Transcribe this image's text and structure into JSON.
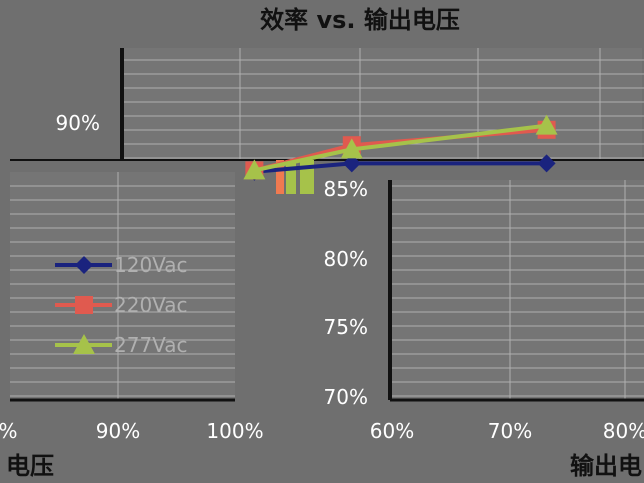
{
  "chart_data": {
    "type": "line",
    "title": "效率 vs. 输出电压",
    "xlabel": "输出电压",
    "ylabel": "",
    "y_ticks": [
      "90%",
      "85%",
      "80%",
      "75%",
      "70%"
    ],
    "x_ticks_left": [
      "%",
      "90%",
      "100%"
    ],
    "x_ticks_right": [
      "60%",
      "70%",
      "80%"
    ],
    "xlabel_left_fragment": "电压",
    "xlabel_right_fragment": "输出电",
    "ylim": [
      70,
      92
    ],
    "xlim": [
      55,
      82
    ],
    "x": [
      62,
      67,
      77
    ],
    "series": [
      {
        "name": "120Vac",
        "values": [
          86.3,
          86.9,
          86.9
        ],
        "color": "#1a237e",
        "marker": "diamond"
      },
      {
        "name": "220Vac",
        "values": [
          86.4,
          88.2,
          89.3
        ],
        "color": "#e05a4f",
        "marker": "square"
      },
      {
        "name": "277Vac",
        "values": [
          86.4,
          87.9,
          89.6
        ],
        "color": "#a6c24a",
        "marker": "triangle"
      }
    ],
    "grid": true,
    "legend": "left"
  },
  "colors": {
    "background": "#6f6f6f",
    "gridline": "#b0b0b0"
  }
}
